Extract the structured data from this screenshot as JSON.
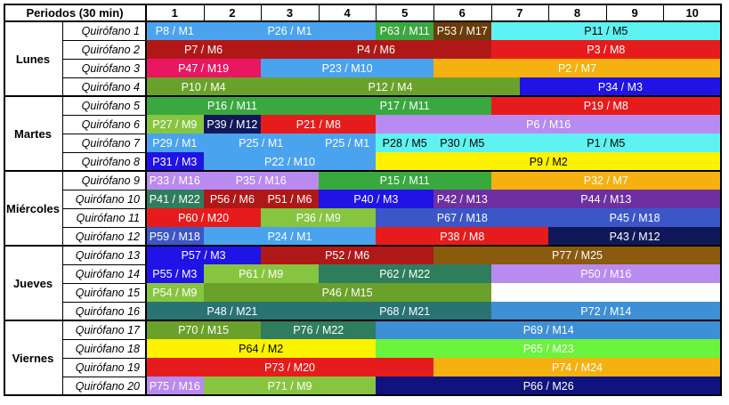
{
  "header": {
    "corner_label": "Periodos (30 min)",
    "periods": [
      "1",
      "2",
      "3",
      "4",
      "5",
      "6",
      "7",
      "8",
      "9",
      "10"
    ]
  },
  "days": [
    {
      "name": "Lunes",
      "rooms": [
        {
          "name": "Quirófano 1",
          "blocks": [
            {
              "label": "P8 / M1",
              "start": 1,
              "span": 1,
              "color": "#4aa3ee"
            },
            {
              "label": "P26 / M1",
              "start": 2,
              "span": 3,
              "color": "#4aa3ee"
            },
            {
              "label": "P63 / M11",
              "start": 5,
              "span": 1,
              "color": "#39a83f"
            },
            {
              "label": "P53 / M17",
              "start": 6,
              "span": 1,
              "color": "#6b3b0a"
            },
            {
              "label": "P11 / M5",
              "start": 7,
              "span": 4,
              "color": "#5ff2f2"
            }
          ]
        },
        {
          "name": "Quirófano 2",
          "blocks": [
            {
              "label": "P7 / M6",
              "start": 1,
              "span": 2,
              "color": "#b01818"
            },
            {
              "label": "P4 / M6",
              "start": 3,
              "span": 4,
              "color": "#b01818"
            },
            {
              "label": "P3 / M8",
              "start": 7,
              "span": 4,
              "color": "#e61c1c"
            }
          ]
        },
        {
          "name": "Quirófano 3",
          "blocks": [
            {
              "label": "P47 / M19",
              "start": 1,
              "span": 2,
              "color": "#e8175f"
            },
            {
              "label": "P23 / M10",
              "start": 3,
              "span": 3,
              "color": "#4aa3ee"
            },
            {
              "label": "P2 / M7",
              "start": 6,
              "span": 5,
              "color": "#f5b10f"
            }
          ]
        },
        {
          "name": "Quirófano 4",
          "blocks": [
            {
              "label": "P10 / M4",
              "start": 1,
              "span": 2,
              "color": "#6aa12a"
            },
            {
              "label": "P12 / M4",
              "start": 3,
              "span": 4.5,
              "color": "#6aa12a"
            },
            {
              "label": "P34 / M3",
              "start": 7.5,
              "span": 3.5,
              "color": "#1f13e6"
            }
          ]
        }
      ]
    },
    {
      "name": "Martes",
      "rooms": [
        {
          "name": "Quirófano 5",
          "blocks": [
            {
              "label": "P16 / M11",
              "start": 1,
              "span": 3,
              "color": "#39a83f"
            },
            {
              "label": "P17 / M11",
              "start": 4,
              "span": 3,
              "color": "#39a83f"
            },
            {
              "label": "P19 / M8",
              "start": 7,
              "span": 4,
              "color": "#e61c1c"
            }
          ]
        },
        {
          "name": "Quirófano 6",
          "blocks": [
            {
              "label": "P27 / M9",
              "start": 1,
              "span": 1,
              "color": "#87c540"
            },
            {
              "label": "P39 / M12",
              "start": 2,
              "span": 1,
              "color": "#10185a"
            },
            {
              "label": "P21 / M8",
              "start": 3,
              "span": 2,
              "color": "#e61c1c"
            },
            {
              "label": "P6 / M16",
              "start": 5,
              "span": 6,
              "color": "#b98af0"
            }
          ]
        },
        {
          "name": "Quirófano 7",
          "blocks": [
            {
              "label": "P29 / M1",
              "start": 1,
              "span": 1,
              "color": "#4aa3ee"
            },
            {
              "label": "P25 / M1",
              "start": 2,
              "span": 2,
              "color": "#4aa3ee"
            },
            {
              "label": "P25 / M1",
              "start": 4,
              "span": 1,
              "color": "#4aa3ee"
            },
            {
              "label": "P28 / M5",
              "start": 5,
              "span": 1,
              "color": "#5ff2f2"
            },
            {
              "label": "P30 / M5",
              "start": 6,
              "span": 1,
              "color": "#5ff2f2"
            },
            {
              "label": "P1 / M5",
              "start": 7,
              "span": 4,
              "color": "#5ff2f2"
            }
          ]
        },
        {
          "name": "Quirófano 8",
          "blocks": [
            {
              "label": "P31 / M3",
              "start": 1,
              "span": 1,
              "color": "#1f13e6"
            },
            {
              "label": "P22 / M10",
              "start": 2,
              "span": 3,
              "color": "#4aa3ee"
            },
            {
              "label": "P9 / M2",
              "start": 5,
              "span": 6,
              "color": "#fdf200"
            }
          ]
        }
      ]
    },
    {
      "name": "Miércoles",
      "rooms": [
        {
          "name": "Quirófano 9",
          "blocks": [
            {
              "label": "P33 / M16",
              "start": 1,
              "span": 1,
              "color": "#b98af0"
            },
            {
              "label": "P35 / M16",
              "start": 2,
              "span": 2,
              "color": "#b98af0"
            },
            {
              "label": "P15 / M11",
              "start": 4,
              "span": 3,
              "color": "#39a83f"
            },
            {
              "label": "P32 / M7",
              "start": 7,
              "span": 4,
              "color": "#f5b10f"
            }
          ]
        },
        {
          "name": "Quirófano 10",
          "blocks": [
            {
              "label": "P41 / M22",
              "start": 1,
              "span": 1,
              "color": "#2f7d5f"
            },
            {
              "label": "P56 / M6",
              "start": 2,
              "span": 1,
              "color": "#b01818"
            },
            {
              "label": "P51 / M6",
              "start": 3,
              "span": 1,
              "color": "#b01818"
            },
            {
              "label": "P40 / M3",
              "start": 4,
              "span": 2,
              "color": "#1f13e6"
            },
            {
              "label": "P42 / M13",
              "start": 6,
              "span": 1,
              "color": "#6e2fa1"
            },
            {
              "label": "P44 / M13",
              "start": 7,
              "span": 4,
              "color": "#6e2fa1"
            }
          ]
        },
        {
          "name": "Quirófano 11",
          "blocks": [
            {
              "label": "P60 / M20",
              "start": 1,
              "span": 2,
              "color": "#e61c1c"
            },
            {
              "label": "P36 / M9",
              "start": 3,
              "span": 2,
              "color": "#87c540"
            },
            {
              "label": "P67 / M18",
              "start": 5,
              "span": 3,
              "color": "#3b56c6"
            },
            {
              "label": "P45 / M18",
              "start": 8,
              "span": 3,
              "color": "#3b56c6"
            }
          ]
        },
        {
          "name": "Quirófano 12",
          "blocks": [
            {
              "label": "P59 / M18",
              "start": 1,
              "span": 1,
              "color": "#3b56c6"
            },
            {
              "label": "P24 / M1",
              "start": 2,
              "span": 3,
              "color": "#4aa3ee"
            },
            {
              "label": "P38 / M8",
              "start": 5,
              "span": 3,
              "color": "#e61c1c"
            },
            {
              "label": "P43 / M12",
              "start": 8,
              "span": 3,
              "color": "#10185a"
            }
          ]
        }
      ]
    },
    {
      "name": "Jueves",
      "rooms": [
        {
          "name": "Quirófano 13",
          "blocks": [
            {
              "label": "P57 / M3",
              "start": 1,
              "span": 2,
              "color": "#1f13e6"
            },
            {
              "label": "P52 / M6",
              "start": 3,
              "span": 3,
              "color": "#b01818"
            },
            {
              "label": "P77 / M25",
              "start": 6,
              "span": 5,
              "color": "#8a5a0d"
            }
          ]
        },
        {
          "name": "Quirófano 14",
          "blocks": [
            {
              "label": "P55 / M3",
              "start": 1,
              "span": 1,
              "color": "#1f13e6"
            },
            {
              "label": "P61 / M9",
              "start": 2,
              "span": 2,
              "color": "#87c540"
            },
            {
              "label": "P62 / M22",
              "start": 4,
              "span": 3,
              "color": "#2f7d5f"
            },
            {
              "label": "P50 / M16",
              "start": 7,
              "span": 4,
              "color": "#b98af0"
            }
          ]
        },
        {
          "name": "Quirófano 15",
          "blocks": [
            {
              "label": "P54 / M9",
              "start": 1,
              "span": 1,
              "color": "#87c540"
            },
            {
              "label": "P46 / M15",
              "start": 2,
              "span": 5,
              "color": "#6aa12a"
            }
          ]
        },
        {
          "name": "Quirófano 16",
          "blocks": [
            {
              "label": "P48 / M21",
              "start": 1,
              "span": 3,
              "color": "#2a7373"
            },
            {
              "label": "P68 / M21",
              "start": 4,
              "span": 3,
              "color": "#2a7373"
            },
            {
              "label": "P72 / M14",
              "start": 7,
              "span": 4,
              "color": "#3d8fd6"
            }
          ]
        }
      ]
    },
    {
      "name": "Viernes",
      "rooms": [
        {
          "name": "Quirófano 17",
          "blocks": [
            {
              "label": "P70 / M15",
              "start": 1,
              "span": 2,
              "color": "#6aa12a"
            },
            {
              "label": "P76 / M22",
              "start": 3,
              "span": 2,
              "color": "#2f7d5f"
            },
            {
              "label": "P69 / M14",
              "start": 5,
              "span": 6,
              "color": "#3d8fd6"
            }
          ]
        },
        {
          "name": "Quirófano 18",
          "blocks": [
            {
              "label": "P64 / M2",
              "start": 1,
              "span": 4,
              "color": "#fdf200"
            },
            {
              "label": "P65 / M23",
              "start": 5,
              "span": 6,
              "color": "#6cf33c"
            }
          ]
        },
        {
          "name": "Quirófano 19",
          "blocks": [
            {
              "label": "P73 / M20",
              "start": 1,
              "span": 5,
              "color": "#e61c1c"
            },
            {
              "label": "P74 / M24",
              "start": 6,
              "span": 5,
              "color": "#f5b10f"
            }
          ]
        },
        {
          "name": "Quirófano 20",
          "blocks": [
            {
              "label": "P75 / M16",
              "start": 1,
              "span": 1,
              "color": "#b98af0"
            },
            {
              "label": "P71 / M9",
              "start": 2,
              "span": 3,
              "color": "#87c540"
            },
            {
              "label": "P66 / M26",
              "start": 5,
              "span": 6,
              "color": "#10137e"
            }
          ]
        }
      ]
    }
  ]
}
